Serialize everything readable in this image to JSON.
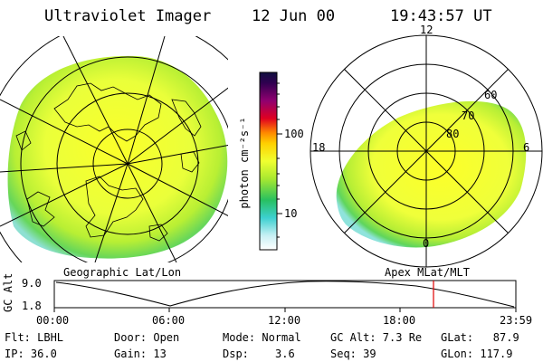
{
  "header": {
    "title": "Ultraviolet Imager",
    "date": "12 Jun 00",
    "time": "19:43:57 UT"
  },
  "colorbar": {
    "label": "photon cm⁻²s⁻¹",
    "ticks": [
      "100",
      "10"
    ]
  },
  "left_panel": {
    "caption": "Geographic Lat/Lon"
  },
  "right_panel": {
    "caption": "Apex MLat/MLT",
    "mlt_labels": {
      "top": "12",
      "left": "18",
      "right": "6",
      "bottom": "0"
    },
    "lat_labels": [
      "60",
      "70",
      "80"
    ]
  },
  "altitude_plot": {
    "ylabel": "GC Alt",
    "yticks": [
      "9.0",
      "1.8"
    ],
    "xticks": [
      "00:00",
      "06:00",
      "12:00",
      "18:00",
      "23:59"
    ],
    "marker_time": "19:43:57",
    "marker_color": "#e00000"
  },
  "info": {
    "flt": "Flt: LBHL",
    "ip": "IP: 36.0",
    "door": "Door: Open",
    "gain": "Gain: 13",
    "mode": "Mode: Normal",
    "dsp_label": "Dsp:",
    "dsp_value": "3.6",
    "gcalt": "GC Alt: 7.3 Re",
    "seq": "Seq: 39",
    "glat": "GLat:   87.9",
    "glon": "GLon: 117.9"
  }
}
